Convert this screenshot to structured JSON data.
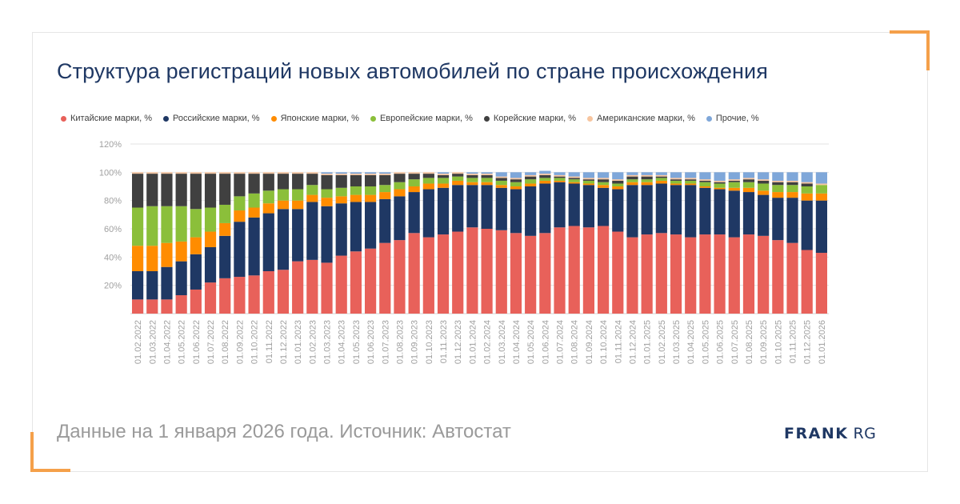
{
  "title": "Структура регистраций новых автомобилей по стране происхождения",
  "footer": {
    "source": "Данные на 1 января 2026 года. Источник: Автостат",
    "logo_bold": "FRANK",
    "logo_light": "RG"
  },
  "colors": {
    "accent": "#f5a04a",
    "title": "#1f3864",
    "series": [
      "#e8615a",
      "#1f3864",
      "#ff8c00",
      "#8bbf3a",
      "#404040",
      "#f7c59f",
      "#7fa7d9"
    ]
  },
  "chart_data": {
    "type": "bar",
    "stacked": true,
    "ylim": [
      0,
      120
    ],
    "yticks": [
      "20%",
      "40%",
      "60%",
      "80%",
      "100%",
      "120%"
    ],
    "legend_position": "top",
    "grid": true,
    "categories": [
      "01.02.2022",
      "01.03.2022",
      "01.04.2022",
      "01.05.2022",
      "01.06.2022",
      "01.07.2022",
      "01.08.2022",
      "01.09.2022",
      "01.10.2022",
      "01.11.2022",
      "01.12.2022",
      "01.01.2023",
      "01.02.2023",
      "01.03.2023",
      "01.04.2023",
      "01.05.2023",
      "01.06.2023",
      "01.07.2023",
      "01.08.2023",
      "01.09.2023",
      "01.10.2023",
      "01.11.2023",
      "01.12.2023",
      "01.01.2024",
      "01.02.2024",
      "01.03.2024",
      "01.04.2024",
      "01.05.2024",
      "01.06.2024",
      "01.07.2024",
      "01.08.2024",
      "01.09.2024",
      "01.10.2024",
      "01.11.2024",
      "01.12.2024",
      "01.01.2025",
      "01.02.2025",
      "01.03.2025",
      "01.04.2025",
      "01.05.2025",
      "01.06.2025",
      "01.07.2025",
      "01.08.2025",
      "01.09.2025",
      "01.10.2025",
      "01.11.2025",
      "01.12.2025",
      "01.01.2026"
    ],
    "series": [
      {
        "name": "Китайские марки, %",
        "values": [
          10,
          10,
          10,
          13,
          17,
          22,
          25,
          26,
          27,
          30,
          31,
          37,
          38,
          36,
          41,
          44,
          46,
          50,
          52,
          57,
          54,
          56,
          58,
          61,
          60,
          59,
          57,
          55,
          57,
          61,
          62,
          61,
          62,
          58,
          54,
          56,
          57,
          56,
          54,
          56,
          56,
          54,
          56,
          55,
          52,
          50,
          45,
          43
        ]
      },
      {
        "name": "Российские марки, %",
        "values": [
          20,
          20,
          23,
          24,
          25,
          25,
          30,
          39,
          41,
          41,
          43,
          37,
          41,
          40,
          37,
          35,
          33,
          31,
          31,
          29,
          34,
          33,
          33,
          30,
          31,
          30,
          31,
          35,
          35,
          32,
          30,
          30,
          27,
          30,
          37,
          35,
          35,
          35,
          37,
          33,
          32,
          33,
          30,
          29,
          30,
          32,
          35,
          37
        ]
      },
      {
        "name": "Японские марки, %",
        "values": [
          18,
          18,
          17,
          14,
          12,
          11,
          9,
          8,
          7,
          7,
          6,
          6,
          5,
          6,
          5,
          5,
          5,
          5,
          5,
          4,
          4,
          3,
          3,
          2,
          2,
          2,
          2,
          2,
          2,
          1,
          1,
          1,
          2,
          2,
          2,
          2,
          2,
          1,
          1,
          1,
          1,
          2,
          3,
          3,
          4,
          4,
          5,
          5
        ]
      },
      {
        "name": "Европейские марки, %",
        "values": [
          27,
          28,
          26,
          25,
          20,
          17,
          13,
          10,
          10,
          9,
          8,
          8,
          7,
          6,
          6,
          6,
          6,
          5,
          5,
          5,
          4,
          4,
          3,
          3,
          3,
          3,
          3,
          3,
          2,
          2,
          2,
          2,
          2,
          2,
          2,
          2,
          2,
          2,
          2,
          3,
          3,
          4,
          4,
          5,
          5,
          5,
          5,
          6
        ]
      },
      {
        "name": "Корейские марки, %",
        "values": [
          24,
          23,
          23,
          23,
          25,
          24,
          22,
          16,
          14,
          12,
          11,
          11,
          8,
          10,
          9,
          8,
          8,
          7,
          6,
          4,
          3,
          2,
          2,
          2,
          2,
          2,
          2,
          2,
          2,
          1,
          1,
          1,
          2,
          2,
          2,
          2,
          1,
          1,
          1,
          1,
          1,
          1,
          2,
          2,
          2,
          2,
          2,
          0
        ]
      },
      {
        "name": "Американские марки, %",
        "values": [
          1,
          1,
          1,
          1,
          1,
          1,
          1,
          1,
          1,
          1,
          1,
          1,
          1,
          1,
          1,
          1,
          1,
          1,
          1,
          1,
          1,
          1,
          1,
          1,
          1,
          1,
          1,
          1,
          1,
          1,
          1,
          1,
          1,
          1,
          1,
          1,
          1,
          1,
          1,
          1,
          1,
          1,
          1,
          1,
          1,
          1,
          1,
          1
        ]
      },
      {
        "name": "Прочие, %",
        "values": [
          0,
          0,
          0,
          0,
          0,
          0,
          0,
          0,
          0,
          0,
          0,
          0,
          0,
          1,
          1,
          1,
          1,
          1,
          0,
          0,
          0,
          1,
          0,
          1,
          1,
          3,
          4,
          2,
          2,
          2,
          3,
          4,
          4,
          5,
          2,
          2,
          2,
          4,
          4,
          5,
          6,
          5,
          4,
          5,
          6,
          6,
          7,
          8
        ]
      }
    ]
  }
}
